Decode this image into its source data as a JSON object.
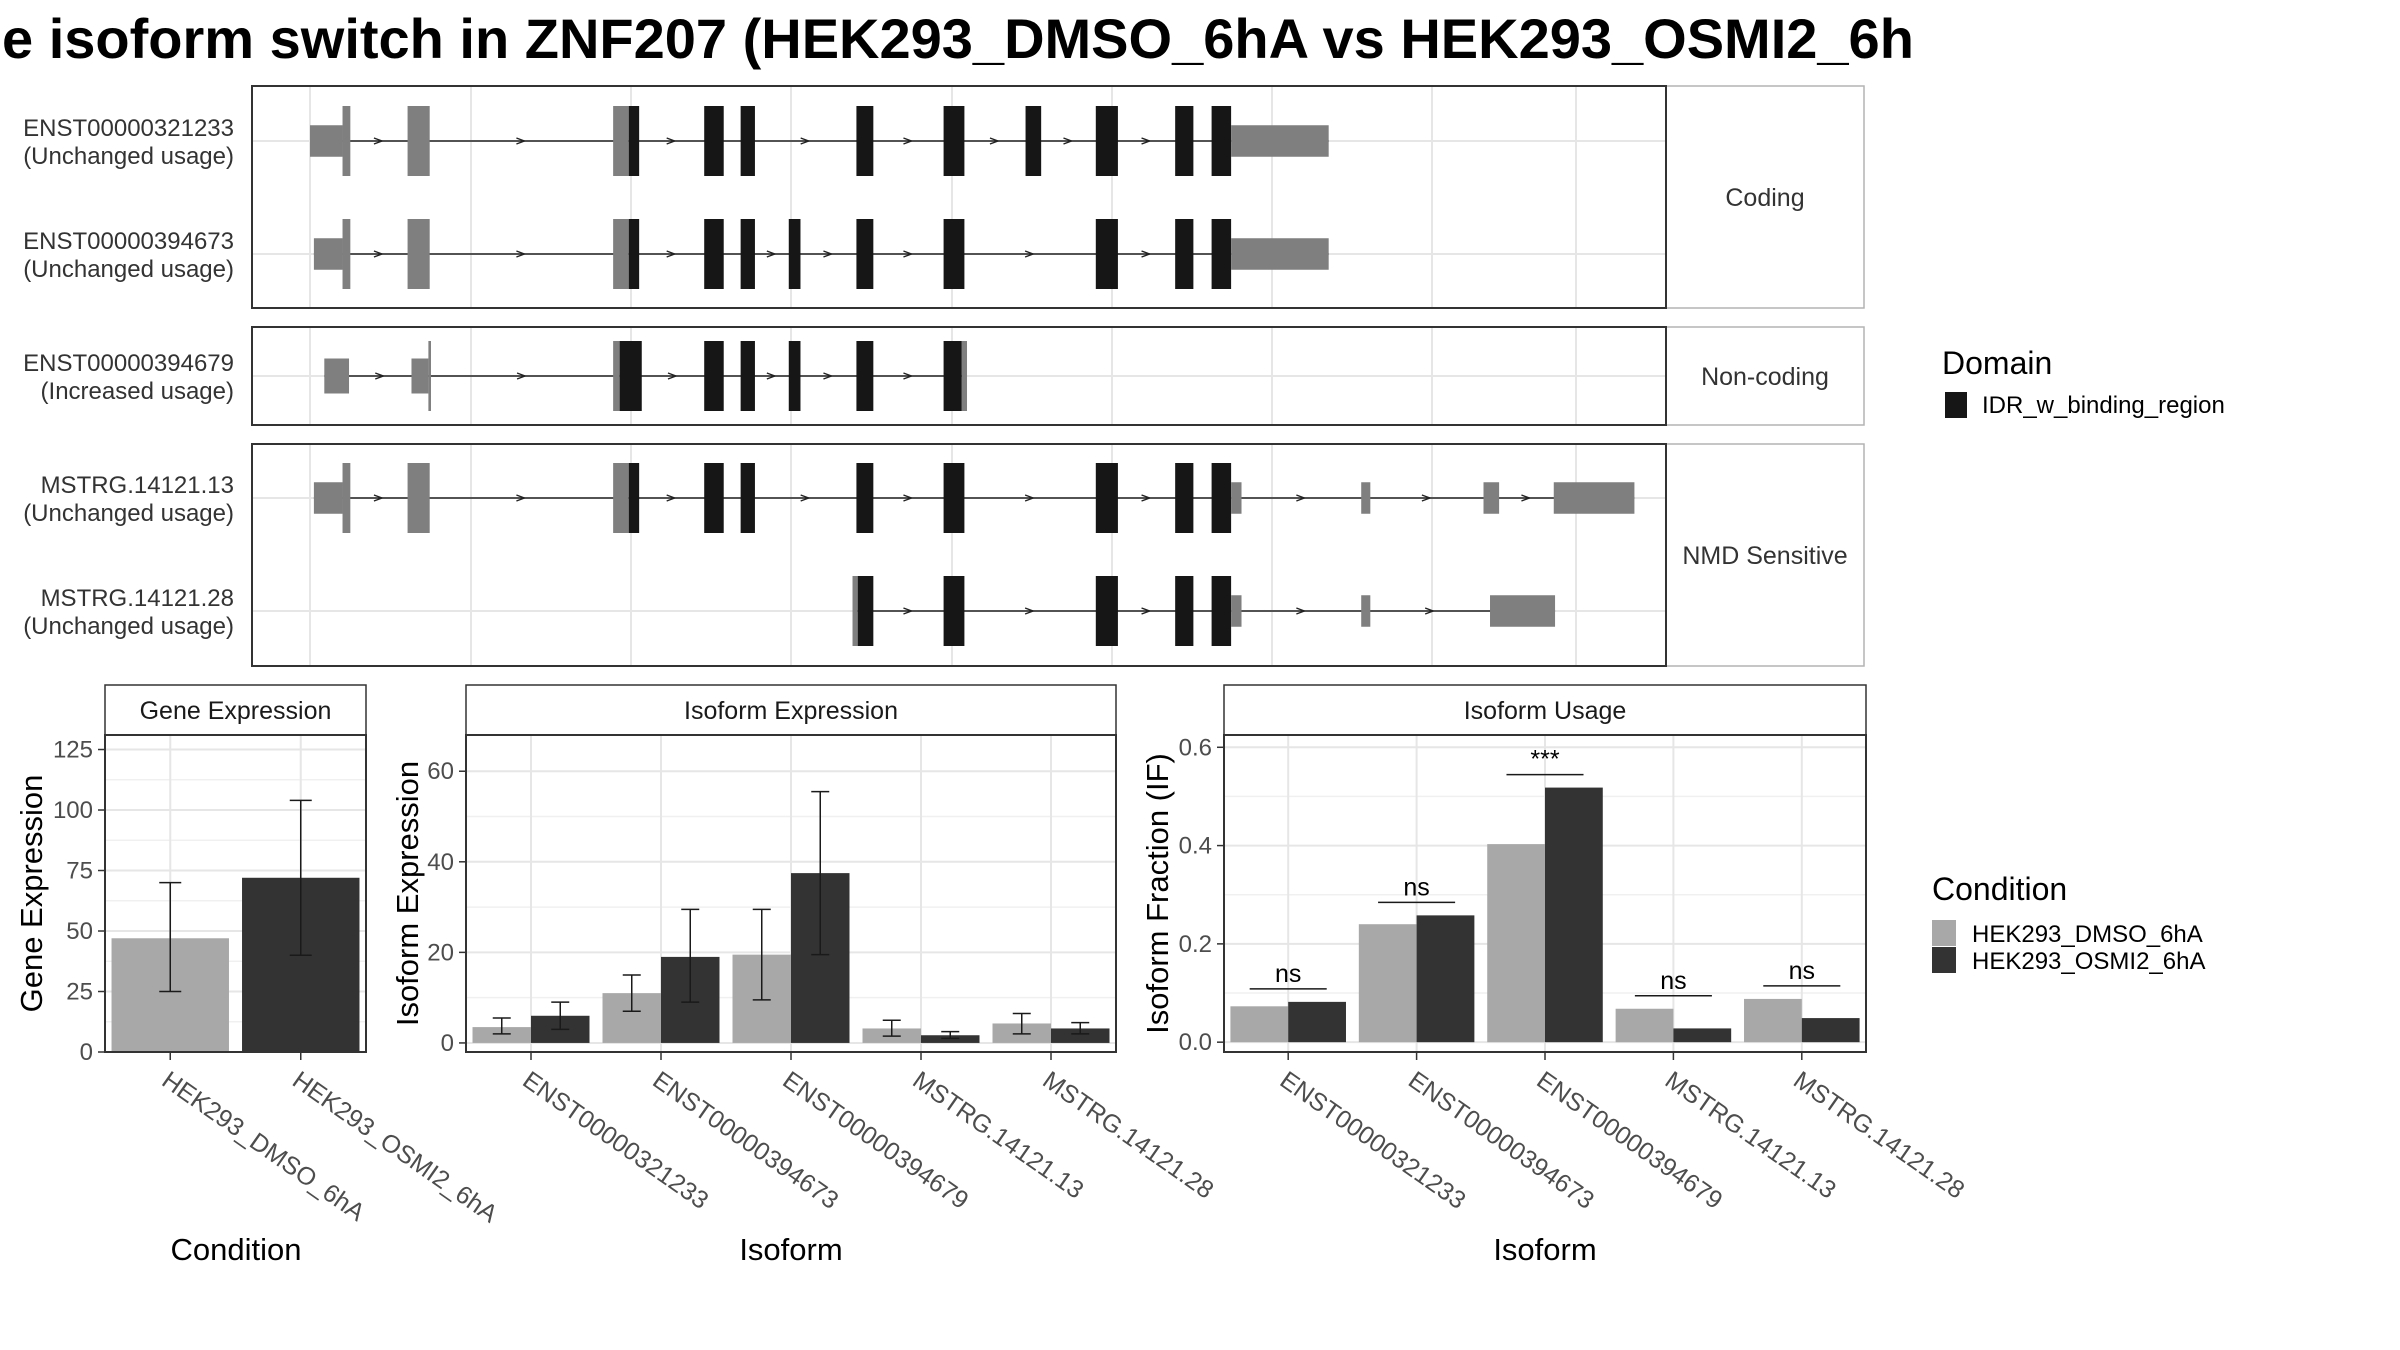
{
  "title": "e isoform switch in ZNF207 (HEK293_DMSO_6hA vs HEK293_OSMI2_6h",
  "colors": {
    "utr": "#7f7f7f",
    "domain": "#161616",
    "dmso": "#a8a8a8",
    "osmi": "#333333",
    "grid": "#e6e6e6",
    "strip": "#ffffff",
    "text": "#333333"
  },
  "structure": {
    "x_domain": [
      0,
      1000
    ],
    "groups": [
      {
        "label": "Coding",
        "transcripts": [
          {
            "id": "ENST00000321233",
            "usage": "(Unchanged usage)",
            "segments": [
              [
                0,
                25,
                "u",
                0.45
              ],
              [
                25,
                31,
                "u",
                1
              ],
              [
                75,
                92,
                "u",
                1
              ],
              [
                233,
                245,
                "u",
                1
              ],
              [
                245,
                253,
                "d",
                1
              ],
              [
                303,
                318,
                "d",
                1
              ],
              [
                331,
                342,
                "d",
                1
              ],
              [
                420,
                433,
                "d",
                1
              ],
              [
                487,
                503,
                "d",
                1
              ],
              [
                550,
                562,
                "d",
                1
              ],
              [
                604,
                621,
                "d",
                1
              ],
              [
                665,
                679,
                "d",
                1
              ],
              [
                693,
                708,
                "d",
                1
              ],
              [
                708,
                783,
                "u",
                0.45
              ]
            ]
          },
          {
            "id": "ENST00000394673",
            "usage": "(Unchanged usage)",
            "segments": [
              [
                3,
                25,
                "u",
                0.45
              ],
              [
                25,
                31,
                "u",
                1
              ],
              [
                75,
                92,
                "u",
                1
              ],
              [
                233,
                245,
                "u",
                1
              ],
              [
                245,
                253,
                "d",
                1
              ],
              [
                303,
                318,
                "d",
                1
              ],
              [
                331,
                342,
                "d",
                1
              ],
              [
                368,
                377,
                "d",
                1
              ],
              [
                420,
                433,
                "d",
                1
              ],
              [
                487,
                503,
                "d",
                1
              ],
              [
                604,
                621,
                "d",
                1
              ],
              [
                665,
                679,
                "d",
                1
              ],
              [
                693,
                708,
                "d",
                1
              ],
              [
                708,
                783,
                "u",
                0.45
              ]
            ]
          }
        ]
      },
      {
        "label": "Non-coding",
        "transcripts": [
          {
            "id": "ENST00000394679",
            "usage": "(Increased usage)",
            "segments": [
              [
                11,
                30,
                "u",
                0.5
              ],
              [
                78,
                91,
                "u",
                0.5
              ],
              [
                91,
                93,
                "u",
                1
              ],
              [
                233,
                238,
                "u",
                1
              ],
              [
                238,
                255,
                "d",
                1
              ],
              [
                303,
                318,
                "d",
                1
              ],
              [
                331,
                342,
                "d",
                1
              ],
              [
                368,
                377,
                "d",
                1
              ],
              [
                420,
                433,
                "d",
                1
              ],
              [
                487,
                501,
                "d",
                1
              ],
              [
                501,
                505,
                "u",
                1
              ]
            ]
          }
        ]
      },
      {
        "label": "NMD Sensitive",
        "transcripts": [
          {
            "id": "MSTRG.14121.13",
            "usage": "(Unchanged usage)",
            "segments": [
              [
                3,
                25,
                "u",
                0.45
              ],
              [
                25,
                31,
                "u",
                1
              ],
              [
                75,
                92,
                "u",
                1
              ],
              [
                233,
                245,
                "u",
                1
              ],
              [
                245,
                253,
                "d",
                1
              ],
              [
                303,
                318,
                "d",
                1
              ],
              [
                331,
                342,
                "d",
                1
              ],
              [
                420,
                433,
                "d",
                1
              ],
              [
                487,
                503,
                "d",
                1
              ],
              [
                604,
                621,
                "d",
                1
              ],
              [
                665,
                679,
                "d",
                1
              ],
              [
                693,
                708,
                "d",
                1
              ],
              [
                708,
                716,
                "u",
                0.45
              ],
              [
                808,
                815,
                "u",
                0.45
              ],
              [
                902,
                914,
                "u",
                0.45
              ],
              [
                956,
                1018,
                "u",
                0.45
              ]
            ]
          },
          {
            "id": "MSTRG.14121.28",
            "usage": "(Unchanged usage)",
            "segments": [
              [
                417,
                421,
                "u",
                1
              ],
              [
                421,
                433,
                "d",
                1
              ],
              [
                487,
                503,
                "d",
                1
              ],
              [
                604,
                621,
                "d",
                1
              ],
              [
                665,
                679,
                "d",
                1
              ],
              [
                693,
                708,
                "d",
                1
              ],
              [
                708,
                716,
                "u",
                0.45
              ],
              [
                808,
                815,
                "u",
                0.45
              ],
              [
                907,
                957,
                "u",
                0.45
              ]
            ]
          }
        ]
      }
    ]
  },
  "legend_domain": {
    "title": "Domain",
    "items": [
      "IDR_w_binding_region"
    ]
  },
  "legend_condition": {
    "title": "Condition",
    "items": [
      "HEK293_DMSO_6hA",
      "HEK293_OSMI2_6hA"
    ]
  },
  "chart_data": [
    {
      "type": "bar",
      "title": "Gene Expression",
      "xlabel": "Condition",
      "ylabel": "Gene Expression",
      "categories": [
        "HEK293_DMSO_6hA",
        "HEK293_OSMI2_6hA"
      ],
      "values": [
        47,
        72
      ],
      "errors": [
        [
          25,
          70
        ],
        [
          40,
          104
        ]
      ],
      "ylim": [
        0,
        131
      ],
      "yticks": [
        0,
        25,
        50,
        75,
        100,
        125
      ],
      "grid": true
    },
    {
      "type": "bar",
      "title": "Isoform Expression",
      "xlabel": "Isoform",
      "ylabel": "Isoform Expression",
      "categories": [
        "ENST00000321233",
        "ENST00000394673",
        "ENST00000394679",
        "MSTRG.14121.13",
        "MSTRG.14121.28"
      ],
      "series": [
        {
          "name": "HEK293_DMSO_6hA",
          "values": [
            3.5,
            11,
            19.5,
            3.2,
            4.3
          ],
          "errors": [
            [
              2,
              5.5
            ],
            [
              7,
              15
            ],
            [
              9.5,
              29.5
            ],
            [
              1.5,
              5
            ],
            [
              2,
              6.5
            ]
          ]
        },
        {
          "name": "HEK293_OSMI2_6hA",
          "values": [
            6,
            19,
            37.5,
            1.7,
            3.2
          ],
          "errors": [
            [
              3,
              9
            ],
            [
              9,
              29.5
            ],
            [
              19.5,
              55.5
            ],
            [
              1,
              2.5
            ],
            [
              2,
              4.5
            ]
          ]
        }
      ],
      "ylim": [
        -2,
        68
      ],
      "yticks": [
        0,
        20,
        40,
        60
      ],
      "grid": true
    },
    {
      "type": "bar",
      "title": "Isoform Usage",
      "xlabel": "Isoform",
      "ylabel": "Isoform Fraction (IF)",
      "categories": [
        "ENST00000321233",
        "ENST00000394673",
        "ENST00000394679",
        "MSTRG.14121.13",
        "MSTRG.14121.28"
      ],
      "series": [
        {
          "name": "HEK293_DMSO_6hA",
          "values": [
            0.073,
            0.24,
            0.403,
            0.068,
            0.088
          ]
        },
        {
          "name": "HEK293_OSMI2_6hA",
          "values": [
            0.082,
            0.258,
            0.518,
            0.028,
            0.049
          ]
        }
      ],
      "significance": [
        "ns",
        "ns",
        "***",
        "ns",
        "ns"
      ],
      "ylim": [
        -0.02,
        0.625
      ],
      "yticks": [
        0.0,
        0.2,
        0.4,
        0.6
      ],
      "grid": true
    }
  ]
}
